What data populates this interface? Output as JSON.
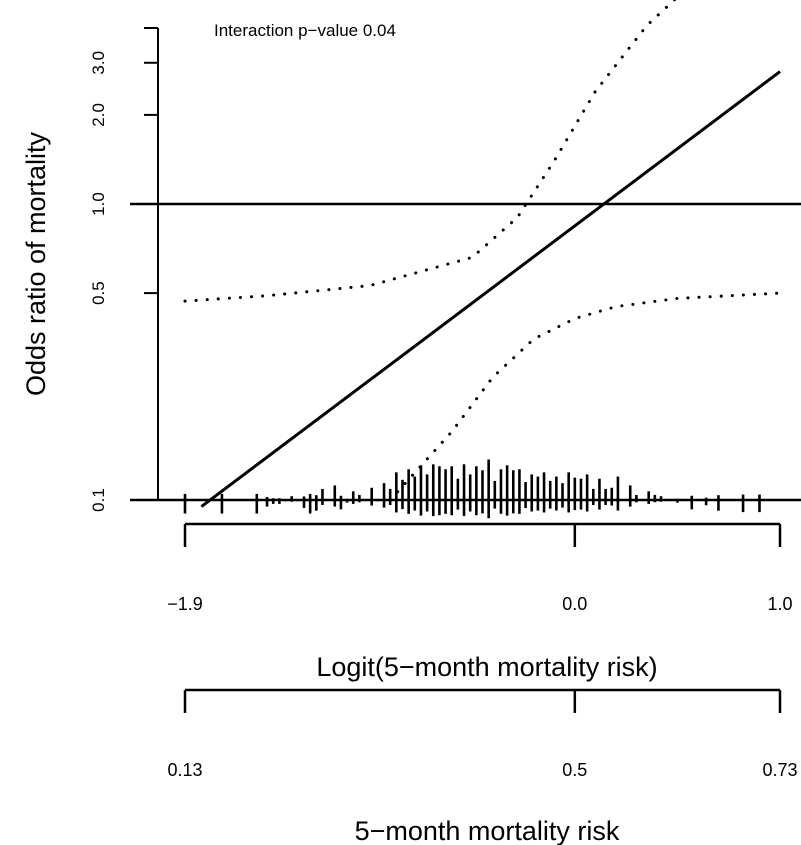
{
  "chart_data": {
    "type": "line",
    "annotation": "Interaction p−value 0.04",
    "ylabel": "Odds ratio of mortality",
    "xlabel_logit": "Logit(5−month mortality risk)",
    "xlabel_risk": "5−month mortality risk",
    "y_scale": "log",
    "y_ticks": [
      0.1,
      0.5,
      1.0,
      2.0,
      3.0
    ],
    "y_tick_labels": [
      "0.1",
      "0.5",
      "1.0",
      "2.0",
      "3.0"
    ],
    "logit_ticks": [
      -1.9,
      0.0,
      1.0
    ],
    "logit_tick_labels": [
      "−1.9",
      "0.0",
      "1.0"
    ],
    "risk_ticks": [
      0.13,
      0.5,
      0.73
    ],
    "risk_tick_labels": [
      "0.13",
      "0.5",
      "0.73"
    ],
    "reference_line_y": 1.0,
    "series": [
      {
        "style": "solid",
        "x": [
          -1.82,
          1.0
        ],
        "y": [
          0.095,
          2.8
        ]
      },
      {
        "style": "dotted",
        "x": [
          -1.9,
          -1.5,
          -1.0,
          -0.5,
          -0.28,
          -0.1,
          0.1,
          0.35,
          0.5
        ],
        "y": [
          0.47,
          0.49,
          0.53,
          0.66,
          0.9,
          1.4,
          2.4,
          4.0,
          5.0
        ]
      },
      {
        "style": "dotted",
        "x": [
          -0.9,
          -0.6,
          -0.4,
          -0.2,
          0.0,
          0.2,
          0.5,
          1.0
        ],
        "y": [
          0.1,
          0.17,
          0.26,
          0.35,
          0.41,
          0.45,
          0.48,
          0.5
        ]
      }
    ],
    "rug": {
      "x": [
        -1.9,
        -1.72,
        -1.55,
        -1.5,
        -1.47,
        -1.44,
        -1.41,
        -1.38,
        -1.35,
        -1.32,
        -1.29,
        -1.26,
        -1.23,
        -1.2,
        -1.17,
        -1.14,
        -1.11,
        -1.08,
        -1.05,
        -1.02,
        -0.99,
        -0.96,
        -0.93,
        -0.9,
        -0.87,
        -0.84,
        -0.81,
        -0.78,
        -0.75,
        -0.72,
        -0.69,
        -0.66,
        -0.63,
        -0.6,
        -0.57,
        -0.54,
        -0.51,
        -0.48,
        -0.45,
        -0.42,
        -0.39,
        -0.36,
        -0.33,
        -0.3,
        -0.27,
        -0.24,
        -0.21,
        -0.18,
        -0.15,
        -0.12,
        -0.09,
        -0.06,
        -0.03,
        0.0,
        0.03,
        0.06,
        0.09,
        0.12,
        0.15,
        0.18,
        0.21,
        0.24,
        0.27,
        0.3,
        0.33,
        0.36,
        0.39,
        0.42,
        0.45,
        0.5,
        0.57,
        0.64,
        0.7,
        0.82,
        0.9
      ],
      "y": [
        0.09,
        0.09,
        0.09,
        0.095,
        0.097,
        0.097,
        0.099,
        0.103,
        0.099,
        0.094,
        0.09,
        0.092,
        0.109,
        0.1,
        0.112,
        0.093,
        0.098,
        0.107,
        0.104,
        0.1,
        0.11,
        0.099,
        0.114,
        0.109,
        0.124,
        0.117,
        0.127,
        0.12,
        0.131,
        0.122,
        0.132,
        0.13,
        0.127,
        0.13,
        0.118,
        0.132,
        0.122,
        0.13,
        0.126,
        0.137,
        0.116,
        0.127,
        0.131,
        0.126,
        0.127,
        0.115,
        0.122,
        0.12,
        0.124,
        0.116,
        0.12,
        0.114,
        0.124,
        0.119,
        0.118,
        0.122,
        0.109,
        0.118,
        0.109,
        0.11,
        0.12,
        0.1,
        0.112,
        0.104,
        0.1,
        0.107,
        0.104,
        0.103,
        0.1,
        0.098,
        0.093,
        0.096,
        0.092,
        0.091,
        0.091
      ]
    }
  }
}
